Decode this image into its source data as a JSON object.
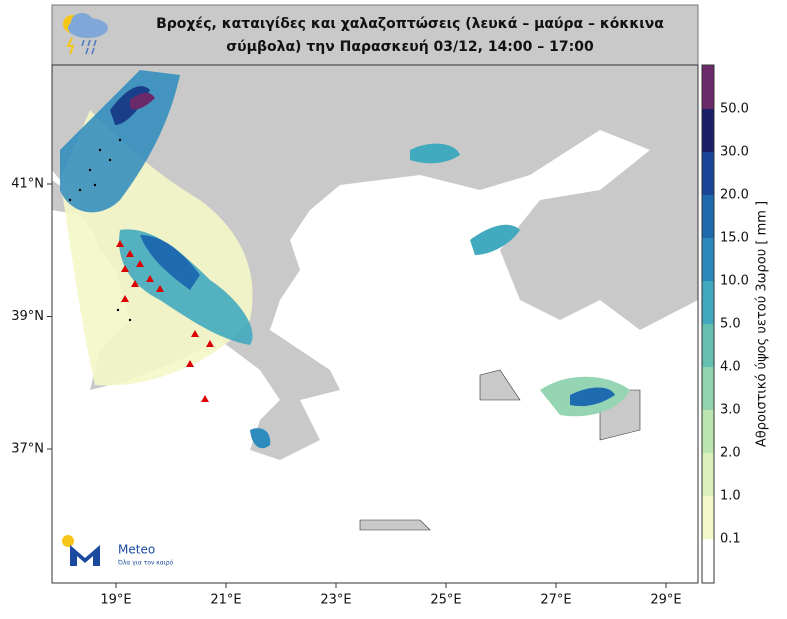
{
  "header": {
    "title_line1": "Βροχές, καταιγίδες και χαλαζοπτώσεις (λευκά – μαύρα – κόκκινα",
    "title_line2": "σύμβολα) την Παρασκευή 03/12, 14:00 – 17:00"
  },
  "map": {
    "lon_labels": [
      "19°E",
      "21°E",
      "23°E",
      "25°E",
      "27°E",
      "29°E"
    ],
    "lat_labels": [
      "41°N",
      "39°N",
      "37°N"
    ]
  },
  "colorbar": {
    "title": "Αθροιστικό ύψος υετού 3ωρου [ mm ]",
    "labels": [
      "0.1",
      "1.0",
      "2.0",
      "3.0",
      "4.0",
      "5.0",
      "10.0",
      "15.0",
      "20.0",
      "30.0",
      "50.0"
    ]
  },
  "logo": {
    "name": "Meteo",
    "tagline": "Όλα για τον καιρό"
  }
}
